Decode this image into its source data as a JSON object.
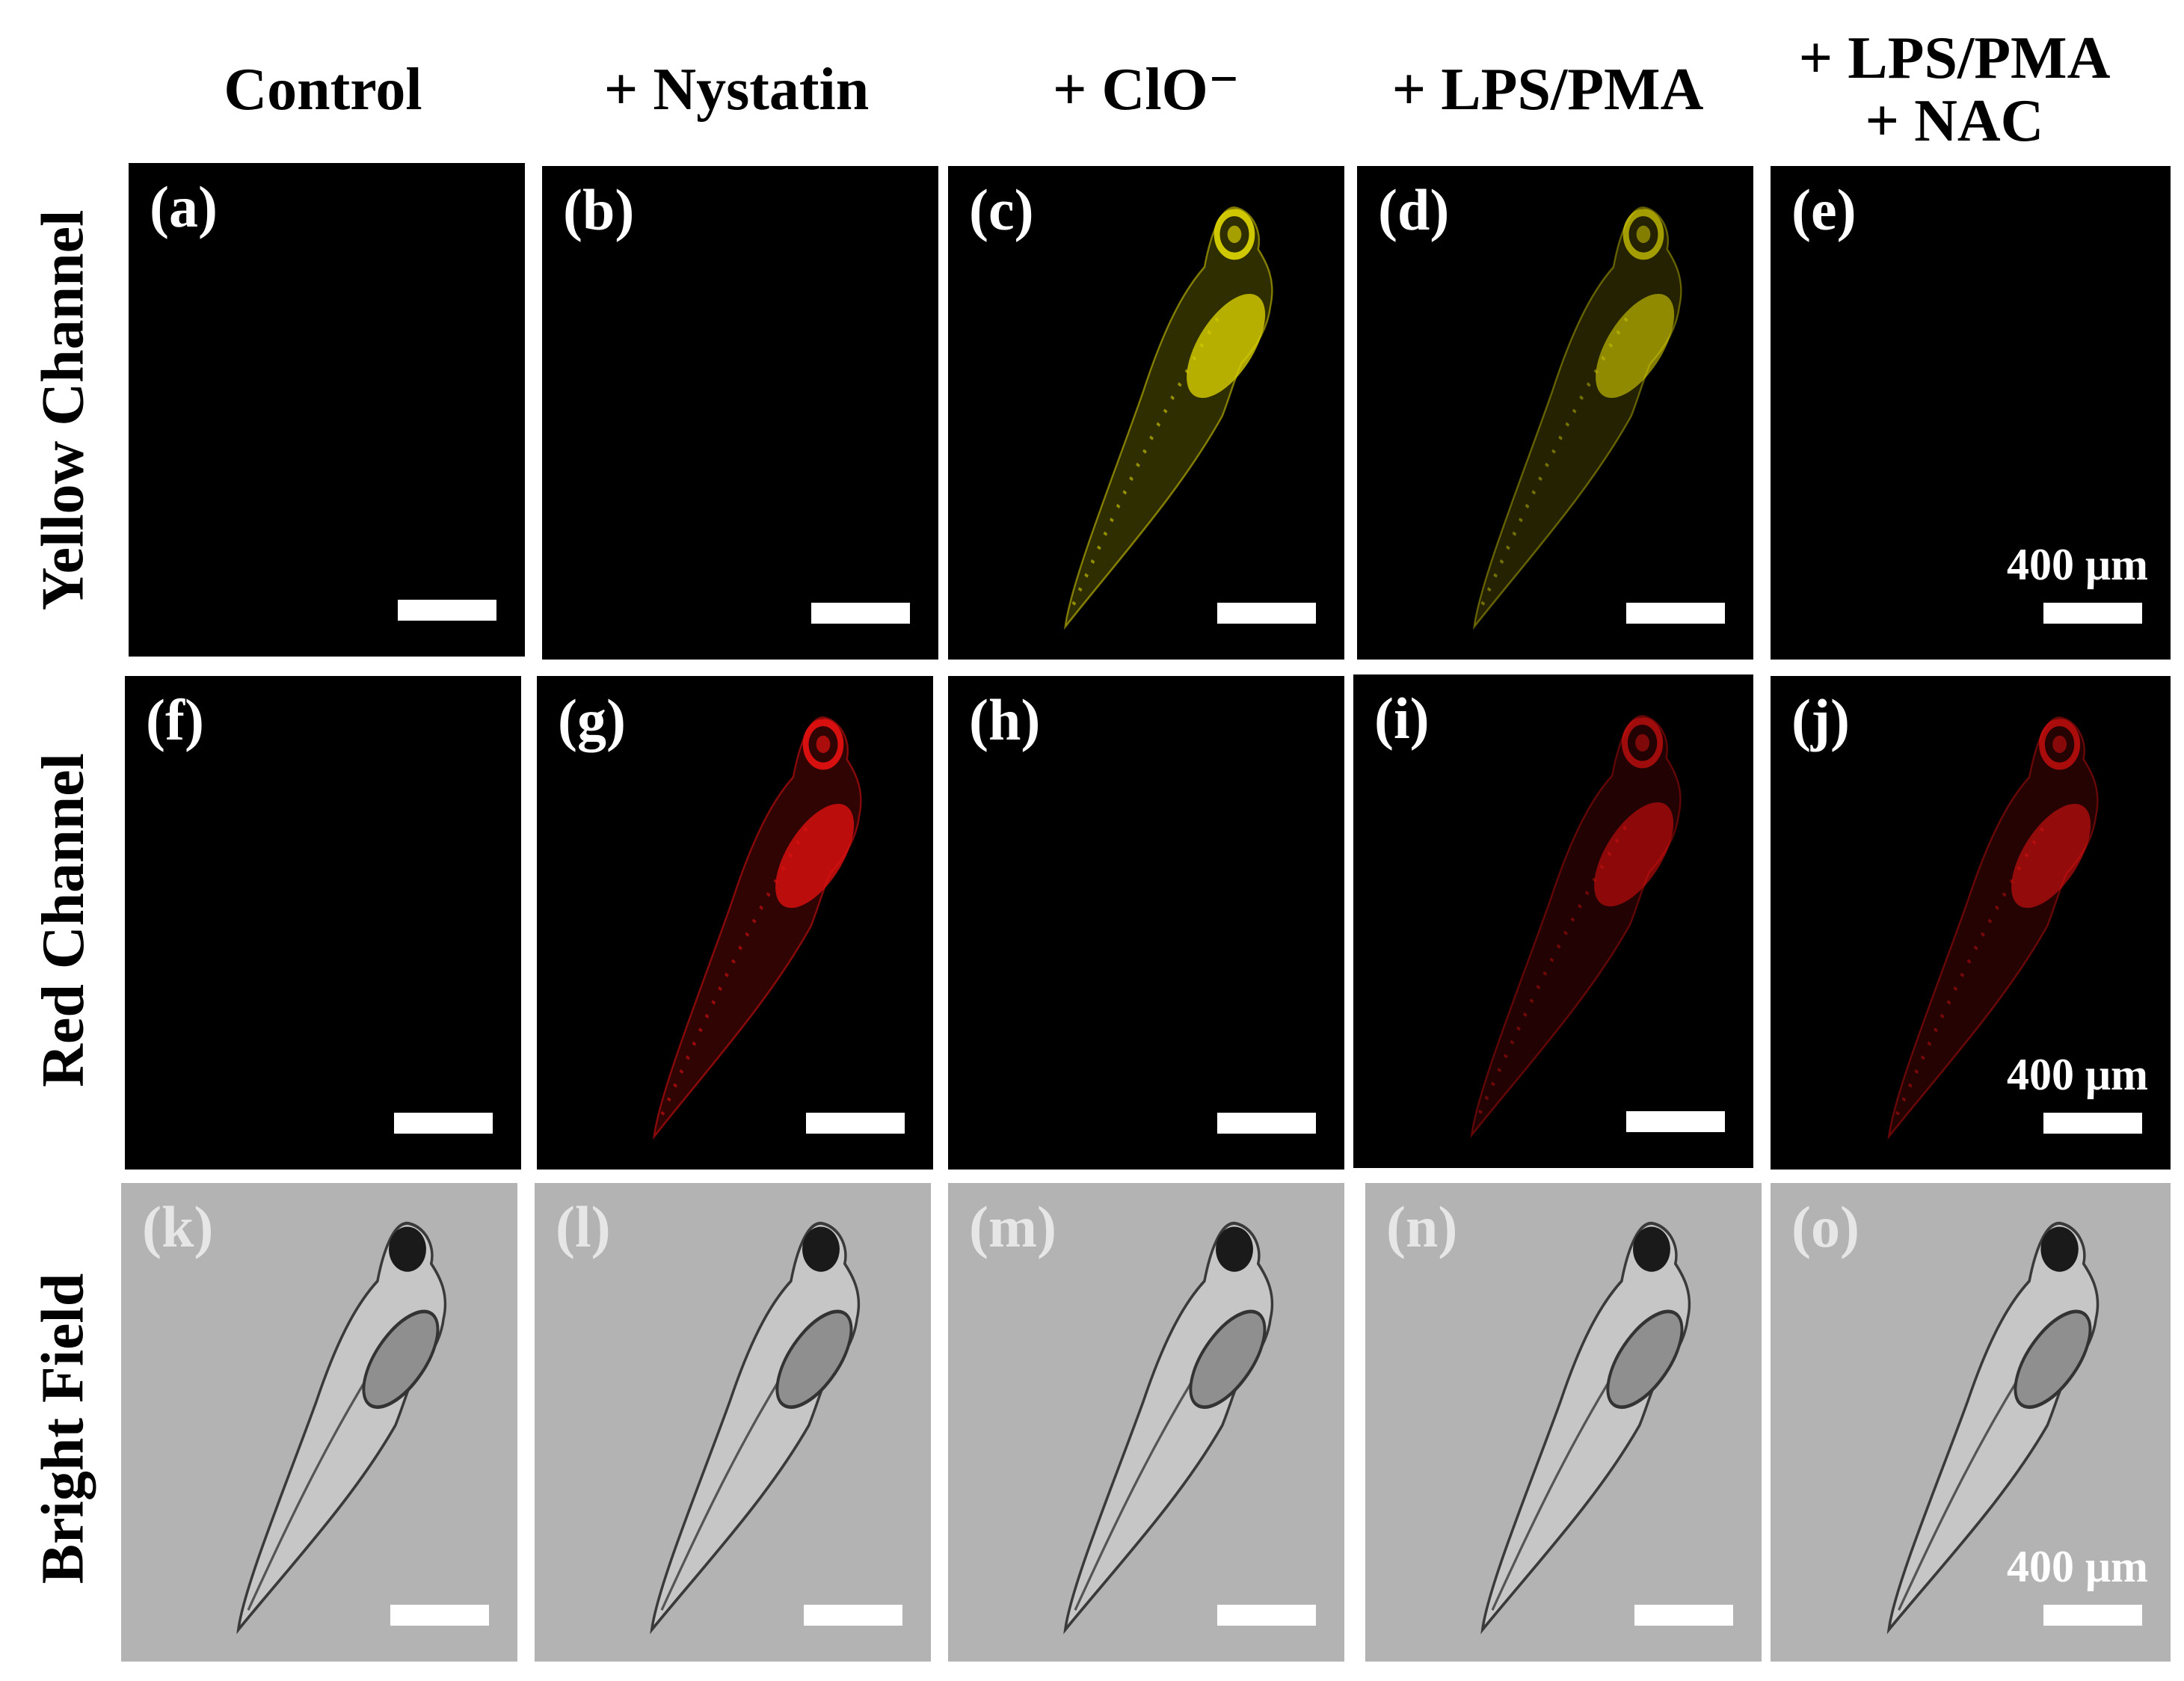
{
  "columns": [
    {
      "label": "Control"
    },
    {
      "label": "+ Nystatin"
    },
    {
      "label": "+ ClO⁻"
    },
    {
      "label": "+ LPS/PMA"
    },
    {
      "label_line1": "+ LPS/PMA",
      "label_line2": "+ NAC"
    }
  ],
  "rows": [
    {
      "label": "Yellow Channel"
    },
    {
      "label": "Red Channel"
    },
    {
      "label": "Bright Field"
    }
  ],
  "scale_bar_text": "400 μm",
  "colors": {
    "yellow_signal": "#d8d000",
    "red_signal": "#e01010",
    "fluor_background": "#000000",
    "brightfield_background": "#b3b3b3",
    "brightfield_label": "#e6e6e6"
  },
  "panels": [
    {
      "id": "a",
      "label": "(a)",
      "channel": "yellow",
      "signal": 0
    },
    {
      "id": "b",
      "label": "(b)",
      "channel": "yellow",
      "signal": 0
    },
    {
      "id": "c",
      "label": "(c)",
      "channel": "yellow",
      "signal": 1.0
    },
    {
      "id": "d",
      "label": "(d)",
      "channel": "yellow",
      "signal": 0.75
    },
    {
      "id": "e",
      "label": "(e)",
      "channel": "yellow",
      "signal": 0
    },
    {
      "id": "f",
      "label": "(f)",
      "channel": "red",
      "signal": 0
    },
    {
      "id": "g",
      "label": "(g)",
      "channel": "red",
      "signal": 1.0
    },
    {
      "id": "h",
      "label": "(h)",
      "channel": "red",
      "signal": 0
    },
    {
      "id": "i",
      "label": "(i)",
      "channel": "red",
      "signal": 0.7
    },
    {
      "id": "j",
      "label": "(j)",
      "channel": "red",
      "signal": 0.75
    },
    {
      "id": "k",
      "label": "(k)",
      "channel": "bright",
      "signal": 1
    },
    {
      "id": "l",
      "label": "(l)",
      "channel": "bright",
      "signal": 1
    },
    {
      "id": "m",
      "label": "(m)",
      "channel": "bright",
      "signal": 1
    },
    {
      "id": "n",
      "label": "(n)",
      "channel": "bright",
      "signal": 1
    },
    {
      "id": "o",
      "label": "(o)",
      "channel": "bright",
      "signal": 1
    }
  ]
}
